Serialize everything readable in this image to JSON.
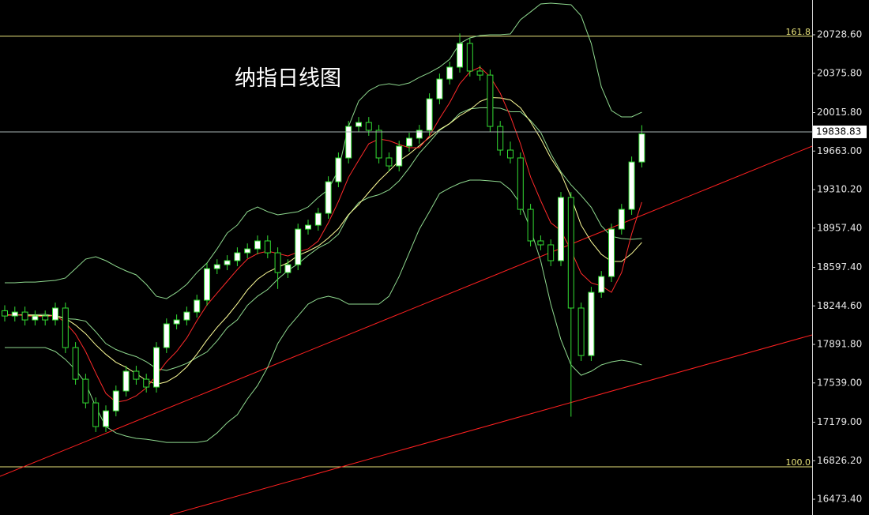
{
  "chart_data": {
    "type": "candlestick",
    "title": "纳指日线图",
    "ylim": [
      16329,
      21047
    ],
    "yticks": [
      {
        "value": 20728.6,
        "label": "20728.60"
      },
      {
        "value": 20375.8,
        "label": "20375.80"
      },
      {
        "value": 20015.8,
        "label": "20015.80"
      },
      {
        "value": 19663,
        "label": "19663.00"
      },
      {
        "value": 19310.2,
        "label": "19310.20"
      },
      {
        "value": 18957.4,
        "label": "18957.40"
      },
      {
        "value": 18597.4,
        "label": "18597.40"
      },
      {
        "value": 18244.6,
        "label": "18244.60"
      },
      {
        "value": 17891.8,
        "label": "17891.80"
      },
      {
        "value": 17539,
        "label": "17539.00"
      },
      {
        "value": 17179,
        "label": "17179.00"
      },
      {
        "value": 16826.2,
        "label": "16826.20"
      },
      {
        "value": 16473.4,
        "label": "16473.40"
      }
    ],
    "up_color": "#ffffff",
    "down_color": "#000000",
    "wick_color": "#33dd33",
    "open": [
      18200,
      18152,
      18188,
      18116,
      18152,
      18116,
      18225,
      17863,
      17573,
      17356,
      17139,
      17283,
      17465,
      17646,
      17573,
      17501,
      17863,
      18080,
      18116,
      18188,
      18297,
      18586,
      18622,
      18659,
      18731,
      18767,
      18840,
      18731,
      18550,
      18622,
      18948,
      18984,
      19093,
      19382,
      19600,
      19889,
      19925,
      19853,
      19600,
      19527,
      19708,
      19781,
      19853,
      20142,
      20323,
      20432,
      20649,
      20396,
      20359,
      19889,
      19672,
      19600,
      19129,
      18840,
      18804,
      18659,
      19238,
      18225,
      17790,
      18369,
      18514,
      18948,
      19129,
      19563
    ],
    "high": [
      18250,
      18238,
      18238,
      18202,
      18202,
      18275,
      18275,
      17913,
      17623,
      17406,
      17333,
      17515,
      17696,
      17696,
      17623,
      17913,
      18130,
      18166,
      18238,
      18347,
      18636,
      18672,
      18709,
      18781,
      18817,
      18890,
      18890,
      18781,
      18672,
      18998,
      19034,
      19143,
      19432,
      19650,
      19939,
      19975,
      19975,
      19903,
      19650,
      19758,
      19831,
      19903,
      20192,
      20373,
      20482,
      20740,
      20699,
      20446,
      20409,
      19939,
      19750,
      19650,
      19179,
      18890,
      18854,
      19288,
      19288,
      18275,
      18419,
      18564,
      18998,
      19179,
      19613,
      19900
    ],
    "low": [
      18102,
      18102,
      18066,
      18066,
      18066,
      18066,
      17813,
      17523,
      17306,
      17089,
      17089,
      17233,
      17415,
      17523,
      17451,
      17451,
      17813,
      18030,
      18066,
      18138,
      18247,
      18536,
      18572,
      18609,
      18681,
      18717,
      18681,
      18400,
      18500,
      18572,
      18898,
      18934,
      19043,
      19332,
      19550,
      19839,
      19803,
      19550,
      19477,
      19477,
      19658,
      19731,
      19803,
      20092,
      20273,
      20382,
      20346,
      20309,
      19839,
      19622,
      19550,
      19079,
      18790,
      18754,
      18609,
      18609,
      17230,
      17740,
      17740,
      18319,
      18464,
      18898,
      19079,
      19513
    ],
    "close": [
      18152,
      18188,
      18116,
      18152,
      18116,
      18225,
      17863,
      17573,
      17356,
      17139,
      17283,
      17465,
      17646,
      17573,
      17501,
      17863,
      18080,
      18116,
      18188,
      18297,
      18586,
      18622,
      18659,
      18731,
      18767,
      18840,
      18731,
      18550,
      18622,
      18948,
      18984,
      19093,
      19382,
      19600,
      19889,
      19925,
      19853,
      19600,
      19527,
      19708,
      19781,
      19853,
      20142,
      20323,
      20432,
      20649,
      20396,
      20359,
      19889,
      19672,
      19600,
      19129,
      18840,
      18804,
      18659,
      19238,
      18225,
      17790,
      18369,
      18514,
      18948,
      19129,
      19563,
      19820
    ],
    "overlays": [
      {
        "color": "#8fd98f",
        "values": [
          18456,
          18456,
          18463,
          18463,
          18471,
          18478,
          18500,
          18586,
          18673,
          18695,
          18659,
          18608,
          18565,
          18529,
          18442,
          18333,
          18311,
          18369,
          18442,
          18550,
          18637,
          18767,
          18912,
          18985,
          19108,
          19151,
          19108,
          19079,
          19093,
          19108,
          19151,
          19238,
          19310,
          19491,
          19889,
          20121,
          20215,
          20265,
          20280,
          20265,
          20287,
          20338,
          20381,
          20432,
          20504,
          20649,
          20700,
          20721,
          20729,
          20729,
          20736,
          20866,
          20938,
          21011,
          21018,
          21011,
          21004,
          20902,
          20649,
          20251,
          20034,
          19976,
          19976,
          20019
        ]
      },
      {
        "color": "#8fd98f",
        "values": [
          18160,
          18160,
          18163,
          18163,
          18167,
          18153,
          18127,
          18123,
          18105,
          18008,
          17899,
          17845,
          17809,
          17780,
          17733,
          17671,
          17653,
          17682,
          17718,
          17772,
          17823,
          17924,
          18044,
          18117,
          18250,
          18333,
          18395,
          18489,
          18569,
          18630,
          18706,
          18775,
          18822,
          18901,
          19075,
          19191,
          19238,
          19263,
          19307,
          19390,
          19509,
          19643,
          19745,
          19853,
          19915,
          20009,
          20049,
          20059,
          20060,
          20056,
          20023,
          20023,
          19943,
          19835,
          19640,
          19473,
          19354,
          19256,
          19148,
          18978,
          18883,
          18862,
          18854,
          18862
        ]
      },
      {
        "color": "#8fd98f",
        "values": [
          17863,
          17863,
          17863,
          17863,
          17863,
          17827,
          17754,
          17660,
          17537,
          17320,
          17139,
          17081,
          17052,
          17031,
          17023,
          17009,
          16994,
          16994,
          16994,
          16994,
          17009,
          17081,
          17175,
          17248,
          17392,
          17515,
          17682,
          17899,
          18044,
          18152,
          18261,
          18311,
          18333,
          18311,
          18261,
          18261,
          18261,
          18261,
          18333,
          18514,
          18731,
          18948,
          19108,
          19274,
          19325,
          19368,
          19397,
          19397,
          19390,
          19382,
          19310,
          19180,
          18948,
          18659,
          18261,
          17935,
          17704,
          17609,
          17646,
          17704,
          17732,
          17747,
          17732,
          17704
        ]
      },
      {
        "color": "#ffff99",
        "values": [
          18160,
          18165,
          18160,
          18158,
          18155,
          18156,
          18131,
          18069,
          17990,
          17888,
          17801,
          17728,
          17682,
          17624,
          17562,
          17527,
          17548,
          17603,
          17686,
          17802,
          17932,
          18048,
          18149,
          18264,
          18391,
          18489,
          18554,
          18598,
          18640,
          18706,
          18746,
          18793,
          18866,
          18952,
          19081,
          19173,
          19285,
          19390,
          19480,
          19573,
          19636,
          19712,
          19788,
          19860,
          19915,
          19987,
          20041,
          20117,
          20153,
          20150,
          20132,
          20059,
          19929,
          19777,
          19600,
          19459,
          19242,
          18985,
          18833,
          18717,
          18652,
          18652,
          18724,
          18826
        ]
      },
      {
        "color": "#ff2a2a",
        "values": [
          18152,
          18170,
          18152,
          18152,
          18145,
          18159,
          18092,
          17986,
          17827,
          17630,
          17443,
          17363,
          17378,
          17421,
          17494,
          17610,
          17733,
          17827,
          17950,
          18109,
          18253,
          18362,
          18470,
          18577,
          18673,
          18724,
          18746,
          18725,
          18702,
          18738,
          18767,
          18839,
          19006,
          19201,
          19423,
          19578,
          19730,
          19773,
          19759,
          19723,
          19694,
          19694,
          19802,
          19961,
          20106,
          20280,
          20388,
          20432,
          20345,
          20193,
          19983,
          19730,
          19426,
          19209,
          19006,
          18934,
          18753,
          18543,
          18456,
          18427,
          18369,
          18550,
          18905,
          19195
        ]
      }
    ],
    "trendlines": [
      {
        "color": "#ff2020",
        "x": [
          -0.47,
          79.84
        ],
        "y": [
          16683,
          19708
        ]
      },
      {
        "color": "#ff2020",
        "x": [
          16.33,
          79.84
        ],
        "y": [
          16329,
          17979
        ]
      }
    ],
    "levels": [
      {
        "value": 20715,
        "label": "161.8",
        "color": "#e8e27a"
      },
      {
        "value": 16770,
        "label": "100.0",
        "color": "#e8e27a"
      }
    ],
    "last_price": 19838.83
  }
}
